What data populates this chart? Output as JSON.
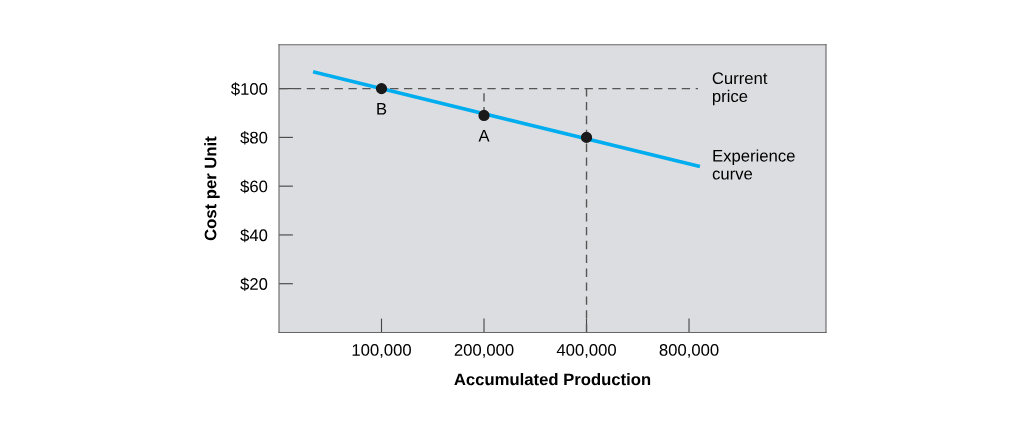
{
  "chart_data": {
    "type": "line",
    "xlabel": "Accumulated Production",
    "ylabel": "Cost per Unit",
    "log": "x",
    "grid": false,
    "legend": false,
    "xlim": [
      50000,
      2020000
    ],
    "ylim": [
      0,
      118
    ],
    "xticks": [
      {
        "value": 100000,
        "label": "100,000"
      },
      {
        "value": 200000,
        "label": "200,000"
      },
      {
        "value": 400000,
        "label": "400,000"
      },
      {
        "value": 800000,
        "label": "800,000"
      }
    ],
    "yticks": [
      {
        "value": 20,
        "label": "$20"
      },
      {
        "value": 40,
        "label": "$40"
      },
      {
        "value": 60,
        "label": "$60"
      },
      {
        "value": 80,
        "label": "$80"
      },
      {
        "value": 100,
        "label": "$100"
      }
    ],
    "series": [
      {
        "name": "Current price",
        "line_style": "dashed",
        "color": "#555555",
        "x": [
          50000,
          850000
        ],
        "values": [
          100,
          100
        ]
      },
      {
        "line_style": "dashed",
        "color": "#555555",
        "x": [
          200000,
          200000
        ],
        "values": [
          89,
          100
        ]
      },
      {
        "line_style": "dashed",
        "color": "#555555",
        "x": [
          400000,
          400000
        ],
        "values": [
          0,
          100
        ]
      },
      {
        "name": "Experience curve",
        "line_style": "solid",
        "color": "#00aeef",
        "x": [
          63700,
          851000
        ],
        "values": [
          106.7,
          68.2
        ]
      },
      {
        "type": "scatter",
        "marker": "circle",
        "color": "#1a1a1a",
        "x": [
          100000,
          200000,
          400000
        ],
        "values": [
          100,
          89,
          80
        ]
      }
    ],
    "annotations": [
      {
        "text": "B",
        "x": 100000,
        "y": 100
      },
      {
        "text": "A",
        "x": 200000,
        "y": 89
      }
    ]
  }
}
